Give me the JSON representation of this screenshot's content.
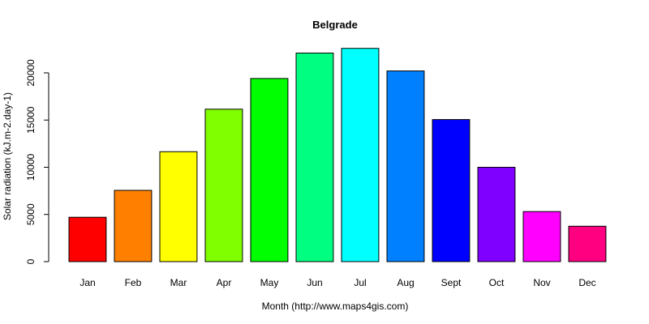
{
  "chart_data": {
    "type": "bar",
    "title": "Belgrade",
    "xlabel": "Month (http://www.maps4gis.com)",
    "ylabel": "Solar radiation (kJ.m-2.day-1)",
    "ylim": [
      0,
      23000
    ],
    "yticks": [
      0,
      5000,
      10000,
      15000,
      20000
    ],
    "grid": false,
    "legend": "none",
    "categories": [
      "Jan",
      "Feb",
      "Mar",
      "Apr",
      "May",
      "Jun",
      "Jul",
      "Aug",
      "Sept",
      "Oct",
      "Nov",
      "Dec"
    ],
    "values": [
      4700,
      7550,
      11650,
      16150,
      19400,
      22100,
      22600,
      20200,
      15050,
      10000,
      5300,
      3750
    ],
    "colors": [
      "#ff0000",
      "#ff8000",
      "#ffff00",
      "#80ff00",
      "#00ff00",
      "#00ff80",
      "#00ffff",
      "#0080ff",
      "#0000ff",
      "#8000ff",
      "#ff00ff",
      "#ff0080"
    ]
  }
}
